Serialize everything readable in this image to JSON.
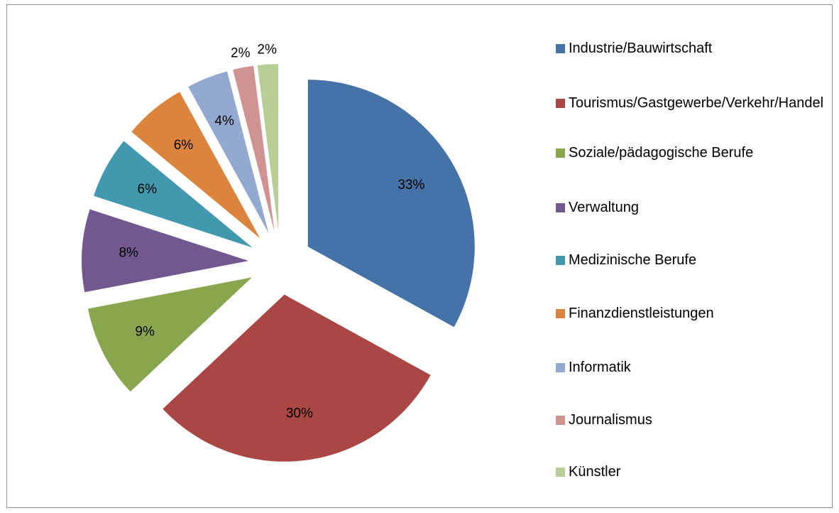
{
  "chart_data": {
    "type": "pie",
    "categories": [
      "Industrie/Bauwirtschaft",
      "Tourismus/Gastgewerbe/Verkehr/Handel",
      "Soziale/pädagogische Berufe",
      "Verwaltung",
      "Medizinische Berufe",
      "Finanzdienstleistungen",
      "Informatik",
      "Journalismus",
      "Künstler"
    ],
    "values": [
      33,
      30,
      9,
      8,
      6,
      6,
      4,
      2,
      2
    ],
    "value_labels": [
      "33%",
      "30%",
      "9%",
      "8%",
      "6%",
      "6%",
      "4%",
      "2%",
      "2%"
    ],
    "colors": [
      "#4572a7",
      "#aa4643",
      "#89a54e",
      "#71588f",
      "#4198af",
      "#db843d",
      "#93a9cf",
      "#d19392",
      "#b9cd96"
    ],
    "legend": "right"
  }
}
